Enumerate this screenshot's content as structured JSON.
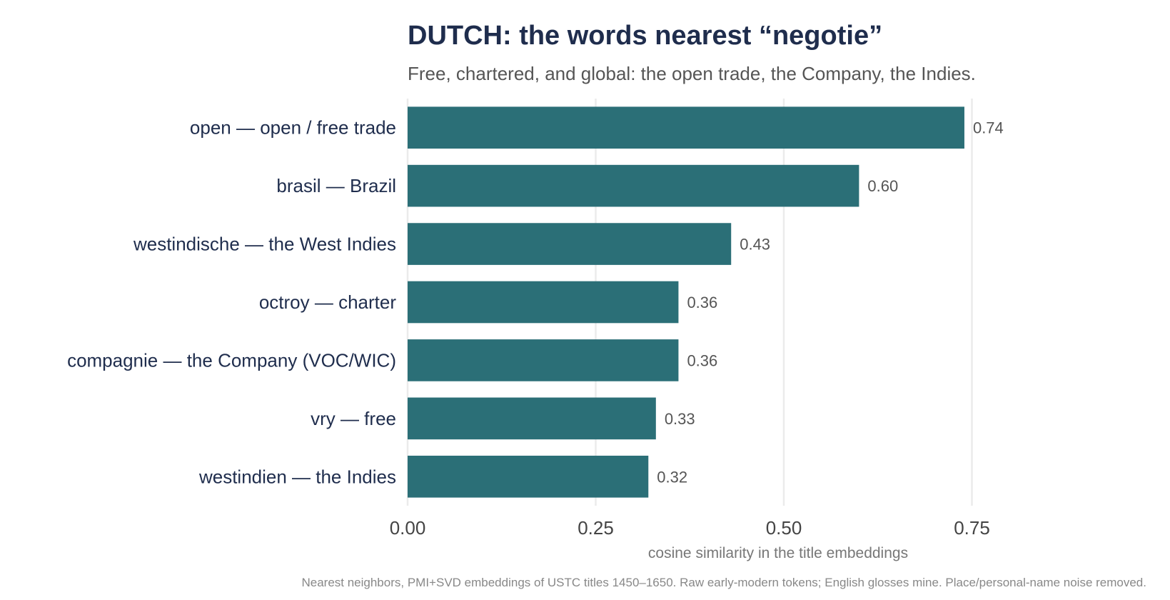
{
  "chart_data": {
    "type": "bar",
    "orientation": "horizontal",
    "title": "DUTCH: the words nearest “negotie”",
    "subtitle": "Free, chartered, and global: the open trade, the Company, the Indies.",
    "categories": [
      "open  —  open / free trade",
      "brasil  —  Brazil",
      "westindische  —  the West Indies",
      "octroy  —  charter",
      "compagnie  —  the Company (VOC/WIC)",
      "vry  —  free",
      "westindien  —  the Indies"
    ],
    "values": [
      0.74,
      0.6,
      0.43,
      0.36,
      0.36,
      0.33,
      0.32
    ],
    "value_labels": [
      "0.74",
      "0.60",
      "0.43",
      "0.36",
      "0.36",
      "0.33",
      "0.32"
    ],
    "xlabel": "cosine similarity in the title embeddings",
    "ylabel": "",
    "xlim": [
      0,
      0.79
    ],
    "xticks": [
      0,
      0.25,
      0.5,
      0.75
    ],
    "xtick_labels": [
      "0.00",
      "0.25",
      "0.50",
      "0.75"
    ],
    "grid": true,
    "legend": "none",
    "bar_color": "#2b6f77",
    "caption": "Nearest neighbors, PMI+SVD embeddings of USTC titles 1450–1650. Raw early-modern tokens; English glosses mine. Place/personal-name noise removed."
  }
}
